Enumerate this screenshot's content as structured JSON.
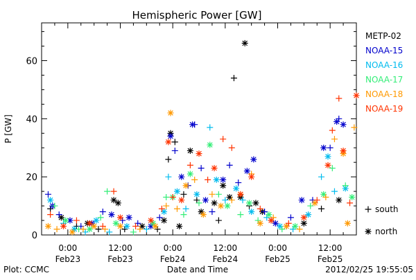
{
  "chart_data": {
    "type": "scatter",
    "title": "Hemispheric Power [GW]",
    "ylabel": "P [GW]",
    "xlabel": "Date and Time",
    "ylim": [
      0,
      73
    ],
    "xlim": [
      -6,
      66
    ],
    "y_ticks": [
      0,
      20,
      40,
      60
    ],
    "x_ticks": [
      {
        "x": 0,
        "time": "0:00",
        "date": "Feb23"
      },
      {
        "x": 12,
        "time": "12:00",
        "date": "Feb23"
      },
      {
        "x": 24,
        "time": "0:00",
        "date": "Feb24"
      },
      {
        "x": 36,
        "time": "12:00",
        "date": "Feb24"
      },
      {
        "x": 48,
        "time": "0:00",
        "date": "Feb25"
      },
      {
        "x": 60,
        "time": "12:00",
        "date": "Feb25"
      }
    ],
    "x_units": "hours since 2012/02/23 0:00",
    "grid": false,
    "legend_position": "right",
    "marker_legend": [
      {
        "symbol": "+",
        "label": "south"
      },
      {
        "symbol": "*",
        "label": "north"
      }
    ],
    "series": [
      {
        "name": "METP-02",
        "color": "#000000",
        "points": [
          {
            "x": -4.0,
            "y": 9,
            "m": "+"
          },
          {
            "x": -1.5,
            "y": 6,
            "m": "*"
          },
          {
            "x": 2.0,
            "y": 3,
            "m": "+"
          },
          {
            "x": 4.5,
            "y": 4,
            "m": "*"
          },
          {
            "x": 7.0,
            "y": 2,
            "m": "+"
          },
          {
            "x": 10.5,
            "y": 12,
            "m": "*"
          },
          {
            "x": 11.5,
            "y": 11,
            "m": "*"
          },
          {
            "x": 13.0,
            "y": 2,
            "m": "+"
          },
          {
            "x": 17.0,
            "y": 3,
            "m": "*"
          },
          {
            "x": 20.5,
            "y": 2,
            "m": "+"
          },
          {
            "x": 22.0,
            "y": 5,
            "m": "*"
          },
          {
            "x": 23.0,
            "y": 26,
            "m": "+"
          },
          {
            "x": 23.5,
            "y": 35,
            "m": "*"
          },
          {
            "x": 24.5,
            "y": 32,
            "m": "+"
          },
          {
            "x": 25.5,
            "y": 3,
            "m": "*"
          },
          {
            "x": 26.5,
            "y": 14,
            "m": "+"
          },
          {
            "x": 28.0,
            "y": 29,
            "m": "*"
          },
          {
            "x": 29.5,
            "y": 12,
            "m": "+"
          },
          {
            "x": 30.5,
            "y": 8,
            "m": "*"
          },
          {
            "x": 33.5,
            "y": 11,
            "m": "*"
          },
          {
            "x": 34.5,
            "y": 5,
            "m": "+"
          },
          {
            "x": 35.5,
            "y": 17,
            "m": "*"
          },
          {
            "x": 37.0,
            "y": 13,
            "m": "*"
          },
          {
            "x": 38.0,
            "y": 54,
            "m": "+"
          },
          {
            "x": 39.5,
            "y": 13,
            "m": "*"
          },
          {
            "x": 40.5,
            "y": 66,
            "m": "*"
          },
          {
            "x": 41.5,
            "y": 10,
            "m": "+"
          },
          {
            "x": 43.0,
            "y": 11,
            "m": "*"
          },
          {
            "x": 44.5,
            "y": 8,
            "m": "*"
          },
          {
            "x": 46.5,
            "y": 5,
            "m": "+"
          },
          {
            "x": 50.0,
            "y": 3,
            "m": "+"
          },
          {
            "x": 54.0,
            "y": 4,
            "m": "*"
          },
          {
            "x": 58.0,
            "y": 9,
            "m": "+"
          },
          {
            "x": 62.0,
            "y": 12,
            "m": "*"
          }
        ]
      },
      {
        "name": "NOAA-15",
        "color": "#0000cc",
        "points": [
          {
            "x": -4.5,
            "y": 14,
            "m": "+"
          },
          {
            "x": -3.5,
            "y": 10,
            "m": "*"
          },
          {
            "x": -2.0,
            "y": 7,
            "m": "+"
          },
          {
            "x": 0.5,
            "y": 5,
            "m": "*"
          },
          {
            "x": 3.0,
            "y": 3,
            "m": "+"
          },
          {
            "x": 5.5,
            "y": 4,
            "m": "*"
          },
          {
            "x": 8.0,
            "y": 8,
            "m": "+"
          },
          {
            "x": 10.0,
            "y": 7,
            "m": "*"
          },
          {
            "x": 12.5,
            "y": 5,
            "m": "+"
          },
          {
            "x": 14.0,
            "y": 6,
            "m": "*"
          },
          {
            "x": 16.0,
            "y": 4,
            "m": "+"
          },
          {
            "x": 19.0,
            "y": 3,
            "m": "*"
          },
          {
            "x": 21.0,
            "y": 6,
            "m": "+"
          },
          {
            "x": 23.5,
            "y": 34,
            "m": "*"
          },
          {
            "x": 24.5,
            "y": 29,
            "m": "+"
          },
          {
            "x": 26.0,
            "y": 20,
            "m": "*"
          },
          {
            "x": 27.5,
            "y": 17,
            "m": "+"
          },
          {
            "x": 28.5,
            "y": 38,
            "m": "*"
          },
          {
            "x": 29.0,
            "y": 38,
            "m": "+"
          },
          {
            "x": 30.5,
            "y": 23,
            "m": "+"
          },
          {
            "x": 31.5,
            "y": 12,
            "m": "*"
          },
          {
            "x": 33.0,
            "y": 8,
            "m": "+"
          },
          {
            "x": 35.5,
            "y": 19,
            "m": "*"
          },
          {
            "x": 37.0,
            "y": 24,
            "m": "+"
          },
          {
            "x": 39.0,
            "y": 18,
            "m": "+"
          },
          {
            "x": 41.0,
            "y": 22,
            "m": "*"
          },
          {
            "x": 42.5,
            "y": 26,
            "m": "*"
          },
          {
            "x": 45.0,
            "y": 8,
            "m": "+"
          },
          {
            "x": 47.5,
            "y": 4,
            "m": "*"
          },
          {
            "x": 51.0,
            "y": 6,
            "m": "+"
          },
          {
            "x": 53.5,
            "y": 12,
            "m": "*"
          },
          {
            "x": 56.0,
            "y": 12,
            "m": "+"
          },
          {
            "x": 58.5,
            "y": 30,
            "m": "*"
          },
          {
            "x": 60.0,
            "y": 30,
            "m": "+"
          },
          {
            "x": 61.5,
            "y": 39,
            "m": "*"
          },
          {
            "x": 62.0,
            "y": 40,
            "m": "+"
          },
          {
            "x": 63.0,
            "y": 38,
            "m": "*"
          }
        ]
      },
      {
        "name": "NOAA-16",
        "color": "#00bbee",
        "points": [
          {
            "x": -4.0,
            "y": 12,
            "m": "*"
          },
          {
            "x": -1.0,
            "y": 4,
            "m": "+"
          },
          {
            "x": 1.5,
            "y": 2,
            "m": "*"
          },
          {
            "x": 4.0,
            "y": 1,
            "m": "+"
          },
          {
            "x": 6.5,
            "y": 5,
            "m": "*"
          },
          {
            "x": 9.5,
            "y": 1,
            "m": "+"
          },
          {
            "x": 13.5,
            "y": 3,
            "m": "*"
          },
          {
            "x": 18.0,
            "y": 2,
            "m": "+"
          },
          {
            "x": 22.0,
            "y": 8,
            "m": "*"
          },
          {
            "x": 23.0,
            "y": 20,
            "m": "+"
          },
          {
            "x": 25.0,
            "y": 15,
            "m": "*"
          },
          {
            "x": 27.0,
            "y": 9,
            "m": "+"
          },
          {
            "x": 29.5,
            "y": 14,
            "m": "*"
          },
          {
            "x": 32.5,
            "y": 37,
            "m": "+"
          },
          {
            "x": 34.0,
            "y": 19,
            "m": "*"
          },
          {
            "x": 36.0,
            "y": 12,
            "m": "+"
          },
          {
            "x": 38.5,
            "y": 16,
            "m": "*"
          },
          {
            "x": 40.0,
            "y": 12,
            "m": "+"
          },
          {
            "x": 42.0,
            "y": 8,
            "m": "*"
          },
          {
            "x": 45.5,
            "y": 6,
            "m": "+"
          },
          {
            "x": 48.5,
            "y": 3,
            "m": "*"
          },
          {
            "x": 51.5,
            "y": 2,
            "m": "+"
          },
          {
            "x": 55.0,
            "y": 7,
            "m": "*"
          },
          {
            "x": 58.0,
            "y": 20,
            "m": "+"
          },
          {
            "x": 59.5,
            "y": 27,
            "m": "*"
          },
          {
            "x": 61.0,
            "y": 15,
            "m": "+"
          },
          {
            "x": 63.5,
            "y": 16,
            "m": "*"
          }
        ]
      },
      {
        "name": "NOAA-17",
        "color": "#33ee77",
        "points": [
          {
            "x": -3.0,
            "y": 10,
            "m": "+"
          },
          {
            "x": -0.5,
            "y": 5,
            "m": "*"
          },
          {
            "x": 2.5,
            "y": 2,
            "m": "+"
          },
          {
            "x": 5.0,
            "y": 2,
            "m": "*"
          },
          {
            "x": 7.5,
            "y": 6,
            "m": "+"
          },
          {
            "x": 9.0,
            "y": 15,
            "m": "+"
          },
          {
            "x": 11.0,
            "y": 4,
            "m": "*"
          },
          {
            "x": 15.0,
            "y": 1,
            "m": "+"
          },
          {
            "x": 19.5,
            "y": 4,
            "m": "*"
          },
          {
            "x": 22.5,
            "y": 13,
            "m": "+"
          },
          {
            "x": 24.0,
            "y": 13,
            "m": "*"
          },
          {
            "x": 26.5,
            "y": 7,
            "m": "+"
          },
          {
            "x": 28.0,
            "y": 21,
            "m": "*"
          },
          {
            "x": 30.0,
            "y": 11,
            "m": "+"
          },
          {
            "x": 32.5,
            "y": 31,
            "m": "*"
          },
          {
            "x": 34.5,
            "y": 14,
            "m": "+"
          },
          {
            "x": 36.5,
            "y": 10,
            "m": "*"
          },
          {
            "x": 39.5,
            "y": 7,
            "m": "+"
          },
          {
            "x": 41.5,
            "y": 11,
            "m": "*"
          },
          {
            "x": 43.5,
            "y": 5,
            "m": "+"
          },
          {
            "x": 46.0,
            "y": 7,
            "m": "*"
          },
          {
            "x": 49.0,
            "y": 2,
            "m": "+"
          },
          {
            "x": 52.0,
            "y": 3,
            "m": "*"
          },
          {
            "x": 55.5,
            "y": 10,
            "m": "+"
          },
          {
            "x": 58.5,
            "y": 14,
            "m": "*"
          },
          {
            "x": 60.5,
            "y": 23,
            "m": "+"
          },
          {
            "x": 63.5,
            "y": 17,
            "m": "+"
          },
          {
            "x": 65.0,
            "y": 13,
            "m": "*"
          }
        ]
      },
      {
        "name": "NOAA-18",
        "color": "#ff9900",
        "points": [
          {
            "x": -4.5,
            "y": 3,
            "m": "*"
          },
          {
            "x": -2.5,
            "y": 2,
            "m": "+"
          },
          {
            "x": 1.0,
            "y": 1,
            "m": "*"
          },
          {
            "x": 3.5,
            "y": 2,
            "m": "+"
          },
          {
            "x": 6.0,
            "y": 3,
            "m": "*"
          },
          {
            "x": 8.5,
            "y": 2,
            "m": "+"
          },
          {
            "x": 12.0,
            "y": 3,
            "m": "*"
          },
          {
            "x": 16.5,
            "y": 2,
            "m": "+"
          },
          {
            "x": 20.0,
            "y": 3,
            "m": "*"
          },
          {
            "x": 22.5,
            "y": 10,
            "m": "+"
          },
          {
            "x": 23.5,
            "y": 42,
            "m": "*"
          },
          {
            "x": 25.0,
            "y": 9,
            "m": "+"
          },
          {
            "x": 27.0,
            "y": 17,
            "m": "*"
          },
          {
            "x": 29.0,
            "y": 19,
            "m": "+"
          },
          {
            "x": 31.0,
            "y": 7,
            "m": "*"
          },
          {
            "x": 33.0,
            "y": 14,
            "m": "+"
          },
          {
            "x": 35.0,
            "y": 10,
            "m": "*"
          },
          {
            "x": 37.5,
            "y": 12,
            "m": "+"
          },
          {
            "x": 39.5,
            "y": 14,
            "m": "*"
          },
          {
            "x": 42.0,
            "y": 21,
            "m": "+"
          },
          {
            "x": 44.0,
            "y": 4,
            "m": "*"
          },
          {
            "x": 47.0,
            "y": 6,
            "m": "+"
          },
          {
            "x": 50.0,
            "y": 3,
            "m": "*"
          },
          {
            "x": 53.0,
            "y": 2,
            "m": "+"
          },
          {
            "x": 56.5,
            "y": 11,
            "m": "*"
          },
          {
            "x": 59.0,
            "y": 13,
            "m": "+"
          },
          {
            "x": 61.0,
            "y": 33,
            "m": "+"
          },
          {
            "x": 63.0,
            "y": 28,
            "m": "*"
          },
          {
            "x": 64.0,
            "y": 4,
            "m": "*"
          },
          {
            "x": 65.5,
            "y": 37,
            "m": "+"
          }
        ]
      },
      {
        "name": "NOAA-19",
        "color": "#ff3300",
        "points": [
          {
            "x": -4.0,
            "y": 7,
            "m": "+"
          },
          {
            "x": -1.0,
            "y": 3,
            "m": "*"
          },
          {
            "x": 2.0,
            "y": 5,
            "m": "+"
          },
          {
            "x": 5.0,
            "y": 4,
            "m": "*"
          },
          {
            "x": 8.0,
            "y": 3,
            "m": "+"
          },
          {
            "x": 10.5,
            "y": 15,
            "m": "+"
          },
          {
            "x": 12.0,
            "y": 6,
            "m": "*"
          },
          {
            "x": 15.5,
            "y": 3,
            "m": "+"
          },
          {
            "x": 19.0,
            "y": 5,
            "m": "*"
          },
          {
            "x": 21.5,
            "y": 9,
            "m": "+"
          },
          {
            "x": 23.0,
            "y": 32,
            "m": "*"
          },
          {
            "x": 24.0,
            "y": 13,
            "m": "+"
          },
          {
            "x": 26.0,
            "y": 12,
            "m": "*"
          },
          {
            "x": 28.0,
            "y": 24,
            "m": "+"
          },
          {
            "x": 30.0,
            "y": 28,
            "m": "*"
          },
          {
            "x": 32.0,
            "y": 19,
            "m": "+"
          },
          {
            "x": 33.5,
            "y": 23,
            "m": "*"
          },
          {
            "x": 35.5,
            "y": 33,
            "m": "+"
          },
          {
            "x": 37.5,
            "y": 30,
            "m": "+"
          },
          {
            "x": 39.5,
            "y": 14,
            "m": "*"
          },
          {
            "x": 42.0,
            "y": 20,
            "m": "*"
          },
          {
            "x": 44.0,
            "y": 9,
            "m": "+"
          },
          {
            "x": 46.5,
            "y": 5,
            "m": "*"
          },
          {
            "x": 50.5,
            "y": 4,
            "m": "+"
          },
          {
            "x": 54.0,
            "y": 6,
            "m": "*"
          },
          {
            "x": 57.0,
            "y": 12,
            "m": "+"
          },
          {
            "x": 59.5,
            "y": 24,
            "m": "*"
          },
          {
            "x": 60.5,
            "y": 36,
            "m": "+"
          },
          {
            "x": 62.0,
            "y": 47,
            "m": "+"
          },
          {
            "x": 63.0,
            "y": 29,
            "m": "*"
          },
          {
            "x": 64.5,
            "y": 11,
            "m": "+"
          },
          {
            "x": 66.0,
            "y": 48,
            "m": "*"
          }
        ]
      }
    ]
  },
  "footer": {
    "plot_credit": "Plot: CCMC",
    "timestamp": "2012/02/25 19:55:05"
  }
}
